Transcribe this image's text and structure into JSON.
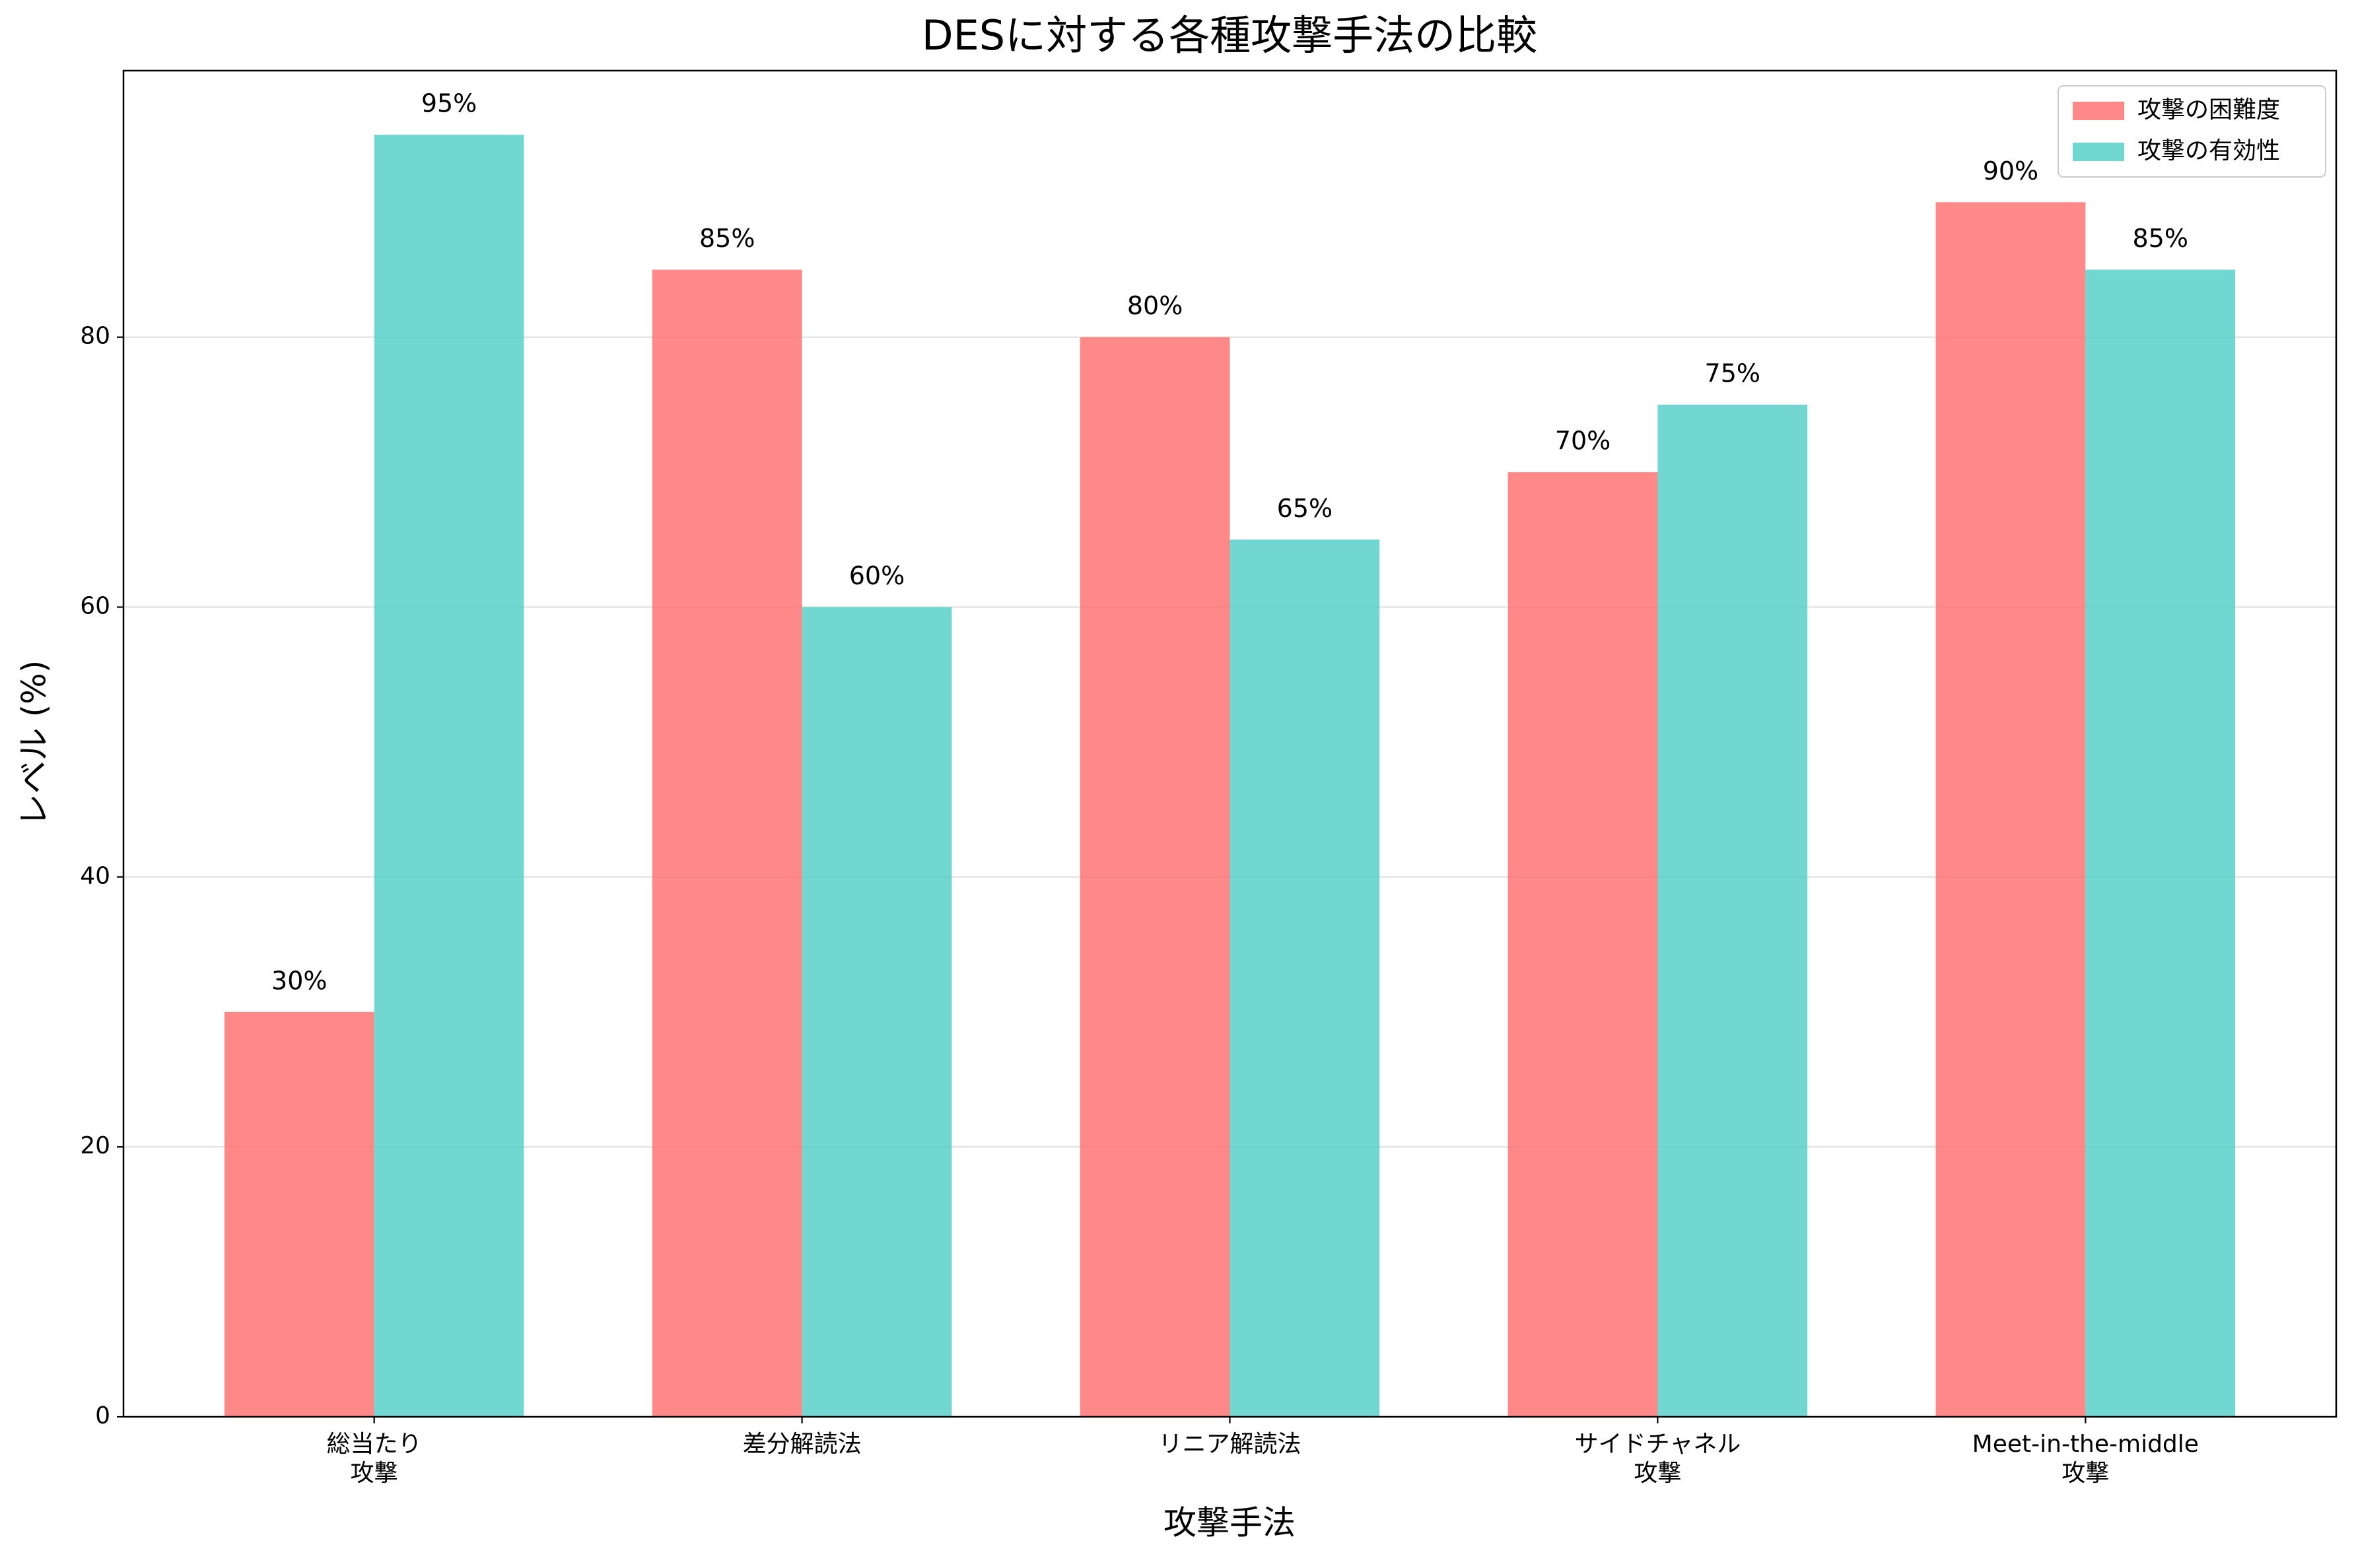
{
  "chart_data": {
    "type": "bar",
    "title": "DESに対する各種攻撃手法の比較",
    "x_label": "攻撃手法",
    "y_label": "レベル (%)",
    "categories": [
      "総当たり\n攻撃",
      "差分解読法",
      "リニア解読法",
      "サイドチャネル\n攻撃",
      "Meet-in-the-middle\n攻撃"
    ],
    "series": [
      {
        "name": "攻撃の困難度",
        "color": "#ff6b6b",
        "values": [
          30,
          85,
          80,
          70,
          90
        ],
        "value_labels": [
          "30%",
          "85%",
          "80%",
          "70%",
          "90%"
        ]
      },
      {
        "name": "攻撃の有効性",
        "color": "#4ecdc4",
        "values": [
          95,
          60,
          65,
          75,
          85
        ],
        "value_labels": [
          "95%",
          "60%",
          "65%",
          "75%",
          "85%"
        ]
      }
    ],
    "ylim": [
      0,
      99.75
    ],
    "yticks": [
      0,
      20,
      40,
      60,
      80
    ],
    "grid": true,
    "legend": "upper right"
  }
}
